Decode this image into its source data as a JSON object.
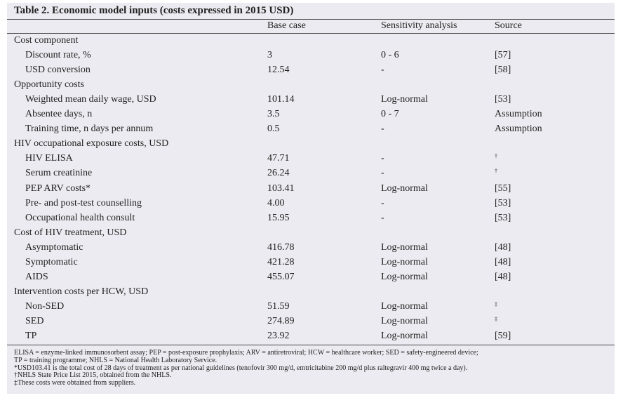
{
  "title": "Table 2. Economic model inputs (costs expressed in 2015 USD)",
  "header": [
    "Base case",
    "Sensitivity analysis",
    "Source"
  ],
  "rows": [
    {
      "section": "Cost component"
    },
    {
      "label": "Discount rate, %",
      "base": "3",
      "sensitivity": "0 - 6",
      "source": "[57]"
    },
    {
      "label": "USD conversion",
      "base": "12.54",
      "sensitivity": "-",
      "source": "[58]"
    },
    {
      "section": "Opportunity costs"
    },
    {
      "label": "Weighted mean daily wage, USD",
      "base": "101.14",
      "sensitivity": "Log-normal",
      "source": "[53]"
    },
    {
      "label": "Absentee days, n",
      "base": "3.5",
      "sensitivity": "0 - 7",
      "source": "Assumption"
    },
    {
      "label": "Training time, n days per annum",
      "base": "0.5",
      "sensitivity": "-",
      "source": "Assumption"
    },
    {
      "section": "HIV occupational exposure costs, USD"
    },
    {
      "label": "HIV ELISA",
      "base": "47.71",
      "sensitivity": "-",
      "source": "†"
    },
    {
      "label": "Serum creatinine",
      "base": "26.24",
      "sensitivity": "-",
      "source": "†"
    },
    {
      "label": "PEP ARV costs*",
      "base": "103.41",
      "sensitivity": "Log-normal",
      "source": "[55]"
    },
    {
      "label": "Pre- and post-test counselling",
      "base": "4.00",
      "sensitivity": "-",
      "source": "[53]"
    },
    {
      "label": "Occupational health consult",
      "base": "15.95",
      "sensitivity": "-",
      "source": "[53]"
    },
    {
      "section": "Cost of HIV treatment, USD"
    },
    {
      "label": "Asymptomatic",
      "base": "416.78",
      "sensitivity": "Log-normal",
      "source": "[48]"
    },
    {
      "label": "Symptomatic",
      "base": "421.28",
      "sensitivity": "Log-normal",
      "source": "[48]"
    },
    {
      "label": "AIDS",
      "base": "455.07",
      "sensitivity": "Log-normal",
      "source": "[48]"
    },
    {
      "section": "Intervention costs per HCW, USD"
    },
    {
      "label": "Non-SED",
      "base": "51.59",
      "sensitivity": "Log-normal",
      "source": "‡"
    },
    {
      "label": "SED",
      "base": "274.89",
      "sensitivity": "Log-normal",
      "source": "‡"
    },
    {
      "label": "TP",
      "base": "23.92",
      "sensitivity": "Log-normal",
      "source": "[59]"
    }
  ],
  "footnotes": [
    "ELISA = enzyme-linked immunosorbent assay; PEP = post-exposure prophylaxis; ARV = antiretroviral; HCW = healthcare worker; SED = safety-engineered device;",
    "TP = training programme; NHLS = National Health Laboratory Service.",
    "*USD103.41 is the total cost of 28 days of treatment as per national guidelines (tenofovir 300 mg/d, emtricitabine 200 mg/d plus raltegravir 400 mg twice a day).",
    "†NHLS State Price List 2015, obtained from the NHLS.",
    "‡These costs were obtained from suppliers."
  ]
}
